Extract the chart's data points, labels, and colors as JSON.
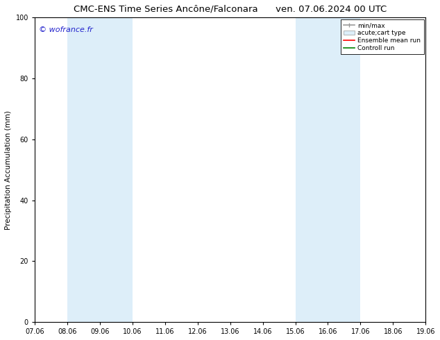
{
  "title_left": "CMC-ENS Time Series Ancône/Falconara",
  "title_right": "ven. 07.06.2024 00 UTC",
  "ylabel": "Precipitation Accumulation (mm)",
  "ylim": [
    0,
    100
  ],
  "yticks": [
    0,
    20,
    40,
    60,
    80,
    100
  ],
  "xtick_labels": [
    "07.06",
    "08.06",
    "09.06",
    "10.06",
    "11.06",
    "12.06",
    "13.06",
    "14.06",
    "15.06",
    "16.06",
    "17.06",
    "18.06",
    "19.06"
  ],
  "bg_color": "#ffffff",
  "plot_bg_color": "#ffffff",
  "shaded_regions": [
    {
      "xstart": 1,
      "xend": 3,
      "color": "#ddeef9"
    },
    {
      "xstart": 8,
      "xend": 10,
      "color": "#ddeef9"
    }
  ],
  "watermark": "© wofrance.fr",
  "watermark_color": "#2222cc",
  "watermark_fontsize": 8,
  "title_fontsize": 9.5,
  "axis_fontsize": 7,
  "ylabel_fontsize": 7.5
}
